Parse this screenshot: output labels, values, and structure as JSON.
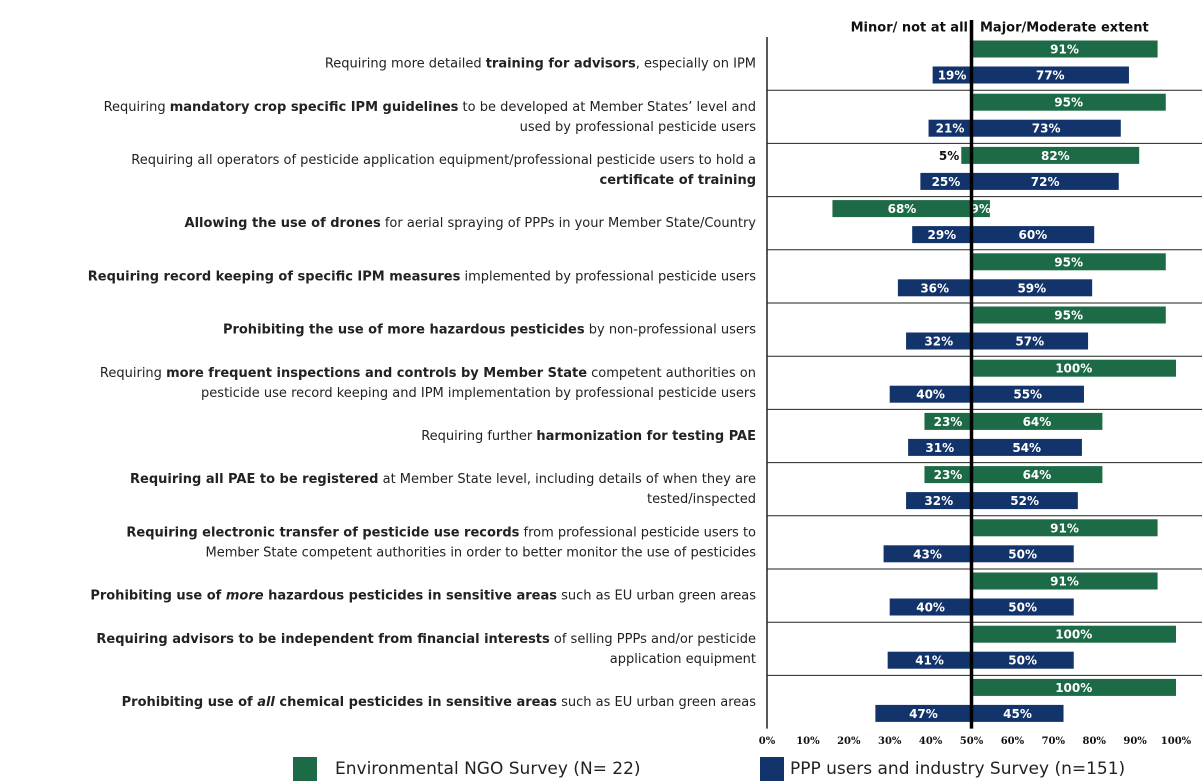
{
  "chart_data": {
    "type": "diverging-bar",
    "left_header": "Minor/ not at all",
    "right_header": "Major/Moderate extent",
    "categories": [
      [
        [
          {
            "text": "Requiring more detailed "
          },
          {
            "text": "training for advisors",
            "style": "bold"
          },
          {
            "text": ", especially on IPM"
          }
        ]
      ],
      [
        [
          {
            "text": "Requiring "
          },
          {
            "text": "mandatory crop specific IPM guidelines",
            "style": "bold"
          },
          {
            "text": " to be developed at Member States’ level and"
          }
        ],
        [
          {
            "text": "used by professional pesticide users"
          }
        ]
      ],
      [
        [
          {
            "text": "Requiring all operators of pesticide application equipment/professional pesticide users to hold a"
          }
        ],
        [
          {
            "text": "certificate of training",
            "style": "bold"
          }
        ]
      ],
      [
        [
          {
            "text": "Allowing the use of drones",
            "style": "bold"
          },
          {
            "text": " for aerial spraying of PPPs in your Member State/Country"
          }
        ]
      ],
      [
        [
          {
            "text": "Requiring record keeping of specific IPM measures",
            "style": "bold"
          },
          {
            "text": " implemented by professional pesticide users"
          }
        ]
      ],
      [
        [
          {
            "text": "Prohibiting the use of more hazardous pesticides",
            "style": "bold"
          },
          {
            "text": " by non-professional users"
          }
        ]
      ],
      [
        [
          {
            "text": "Requiring "
          },
          {
            "text": "more frequent inspections and controls by Member State",
            "style": "bold"
          },
          {
            "text": " competent authorities on"
          }
        ],
        [
          {
            "text": "pesticide use record keeping and IPM implementation by professional pesticide users"
          }
        ]
      ],
      [
        [
          {
            "text": "Requiring further "
          },
          {
            "text": "harmonization for testing PAE",
            "style": "bold"
          }
        ]
      ],
      [
        [
          {
            "text": "Requiring all PAE to be registered",
            "style": "bold"
          },
          {
            "text": " at Member State level, including details of when they are"
          }
        ],
        [
          {
            "text": "tested/inspected"
          }
        ]
      ],
      [
        [
          {
            "text": "Requiring electronic transfer of pesticide use records",
            "style": "bold"
          },
          {
            "text": " from professional pesticide users to"
          }
        ],
        [
          {
            "text": "Member State competent authorities in order to better monitor the use of pesticides"
          }
        ]
      ],
      [
        [
          {
            "text": "Prohibiting use of ",
            "style": "bold"
          },
          {
            "text": "more",
            "style": "bold-italic"
          },
          {
            "text": " hazardous pesticides in sensitive areas",
            "style": "bold"
          },
          {
            "text": " such as EU urban green areas"
          }
        ]
      ],
      [
        [
          {
            "text": "Requiring advisors to be independent from financial interests",
            "style": "bold"
          },
          {
            "text": " of selling PPPs and/or pesticide"
          }
        ],
        [
          {
            "text": "application equipment"
          }
        ]
      ],
      [
        [
          {
            "text": "Prohibiting use of ",
            "style": "bold"
          },
          {
            "text": "all",
            "style": "bold-italic"
          },
          {
            "text": " chemical pesticides in sensitive areas",
            "style": "bold"
          },
          {
            "text": " such as EU urban green areas"
          }
        ]
      ]
    ],
    "series": [
      {
        "name": "Environmental NGO Survey (N= 22)",
        "color": "#1d6a47",
        "minor": [
          null,
          null,
          5,
          68,
          null,
          null,
          null,
          23,
          23,
          null,
          null,
          null,
          null
        ],
        "minor_labels": [
          null,
          null,
          "5%",
          "68%",
          null,
          null,
          null,
          "23%",
          "23%",
          null,
          null,
          null,
          null
        ],
        "major": [
          91,
          95,
          82,
          9,
          95,
          95,
          100,
          64,
          64,
          91,
          91,
          100,
          100
        ],
        "major_labels": [
          "91%",
          "95%",
          "82%",
          "9%",
          "95%",
          "95%",
          "100%",
          "64%",
          "64%",
          "91%",
          "91%",
          "100%",
          "100%"
        ]
      },
      {
        "name": "PPP users and industry Survey (n=151)",
        "color": "#13336b",
        "minor": [
          19,
          21,
          25,
          29,
          36,
          32,
          40,
          31,
          32,
          43,
          40,
          41,
          47
        ],
        "minor_labels": [
          "19%",
          "21%",
          "25%",
          "29%",
          "36%",
          "32%",
          "40%",
          "31%",
          "32%",
          "43%",
          "40%",
          "41%",
          "47%"
        ],
        "major": [
          77,
          73,
          72,
          60,
          59,
          57,
          55,
          54,
          52,
          50,
          50,
          50,
          45
        ],
        "major_labels": [
          "77%",
          "73%",
          "72%",
          "60%",
          "59%",
          "57%",
          "55%",
          "54%",
          "52%",
          "50%",
          "50%",
          "50%",
          "45%"
        ]
      }
    ],
    "xlim": [
      0,
      100
    ],
    "xticks": [
      {
        "value": 0,
        "label": "0%"
      },
      {
        "value": 10,
        "label": "10%"
      },
      {
        "value": 20,
        "label": "20%"
      },
      {
        "value": 30,
        "label": "30%"
      },
      {
        "value": 40,
        "label": "40%"
      },
      {
        "value": 50,
        "label": "50%"
      },
      {
        "value": 60,
        "label": "60%"
      },
      {
        "value": 70,
        "label": "70%"
      },
      {
        "value": 80,
        "label": "80%"
      },
      {
        "value": 90,
        "label": "90%"
      },
      {
        "value": 100,
        "label": "100%"
      }
    ],
    "bar_scale_max": 100
  }
}
